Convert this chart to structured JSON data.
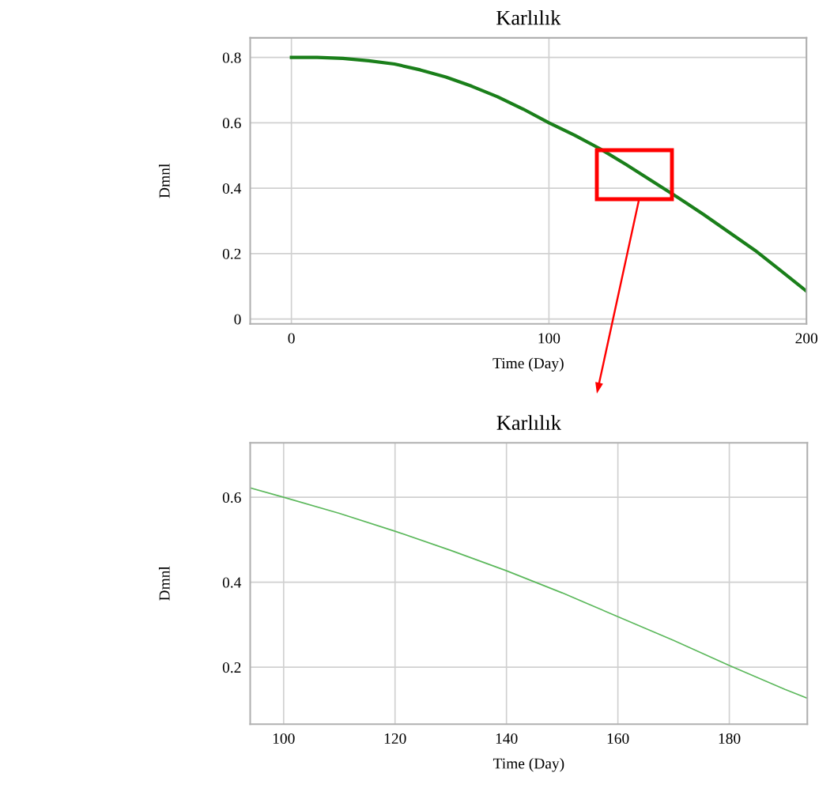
{
  "chart_data": [
    {
      "type": "line",
      "title": "Karlılık",
      "xlabel": "Time (Day)",
      "ylabel": "Dmnl",
      "xlim": [
        -16,
        200
      ],
      "ylim": [
        -0.015,
        0.86
      ],
      "xticks": [
        0,
        100,
        200
      ],
      "yticks": [
        0,
        0.2,
        0.4,
        0.6,
        0.8
      ],
      "grid": true,
      "series": [
        {
          "color": "#1a7f1a",
          "x": [
            0,
            10,
            20,
            30,
            40,
            50,
            60,
            70,
            80,
            90,
            100,
            110,
            120,
            130,
            140,
            150,
            160,
            170,
            180,
            190,
            200
          ],
          "values": [
            0.8,
            0.8,
            0.797,
            0.79,
            0.78,
            0.762,
            0.74,
            0.712,
            0.68,
            0.642,
            0.6,
            0.562,
            0.52,
            0.472,
            0.422,
            0.372,
            0.32,
            0.265,
            0.21,
            0.148,
            0.085
          ]
        }
      ]
    },
    {
      "type": "line",
      "title": "Karlılık",
      "xlabel": "Time (Day)",
      "ylabel": "Dmnl",
      "xlim": [
        94,
        194
      ],
      "ylim": [
        0.066,
        0.728
      ],
      "xticks": [
        100,
        120,
        140,
        160,
        180
      ],
      "yticks": [
        0.2,
        0.4,
        0.6
      ],
      "grid": true,
      "series": [
        {
          "color": "#5cb85c",
          "x": [
            94,
            100,
            110,
            120,
            130,
            140,
            150,
            160,
            170,
            180,
            190,
            194
          ],
          "values": [
            0.622,
            0.6,
            0.562,
            0.52,
            0.475,
            0.427,
            0.375,
            0.319,
            0.263,
            0.204,
            0.148,
            0.127
          ]
        }
      ]
    }
  ]
}
